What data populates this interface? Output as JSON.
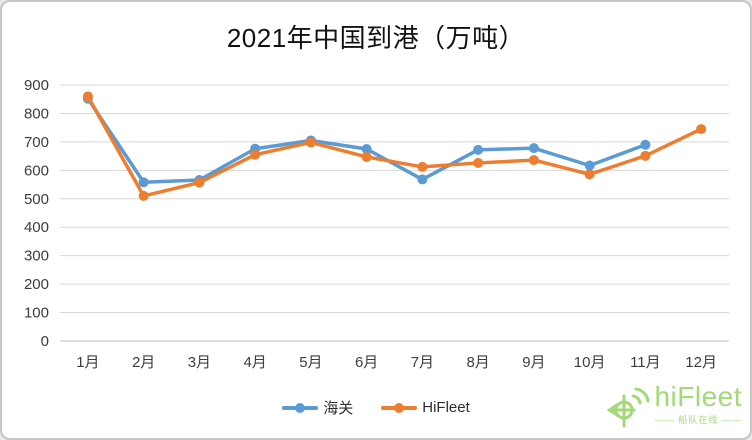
{
  "frame": {
    "background": "#ffffff",
    "border_color": "#c6c6c6"
  },
  "chart_data": {
    "type": "line",
    "title": "2021年中国到港（万吨）",
    "categories": [
      "1月",
      "2月",
      "3月",
      "4月",
      "5月",
      "6月",
      "7月",
      "8月",
      "9月",
      "10月",
      "11月",
      "12月"
    ],
    "series": [
      {
        "name": "海关",
        "color": "#5B9BD5",
        "values": [
          852,
          558,
          566,
          676,
          705,
          675,
          568,
          672,
          678,
          617,
          690,
          null
        ]
      },
      {
        "name": "HiFleet",
        "color": "#ED7D31",
        "values": [
          860,
          510,
          557,
          655,
          698,
          647,
          612,
          626,
          636,
          586,
          651,
          745
        ]
      }
    ],
    "xlabel": "",
    "ylabel": "",
    "ylim": [
      0,
      900
    ],
    "ytick_step": 100,
    "ytick_labels": [
      "0",
      "100",
      "200",
      "300",
      "400",
      "500",
      "600",
      "700",
      "800",
      "900"
    ],
    "grid": "horizontal",
    "gridline_color": "#d9d9d9",
    "axis_line_color": "#bfbfbf",
    "axis_text_color": "#3d3d3d",
    "legend_position": "bottom",
    "marker": "circle",
    "line_width": 3.5,
    "marker_radius": 5
  },
  "watermark": {
    "brand": "hiFleet",
    "tagline": "—— 船队在线 ——",
    "color": "#a3d977"
  }
}
